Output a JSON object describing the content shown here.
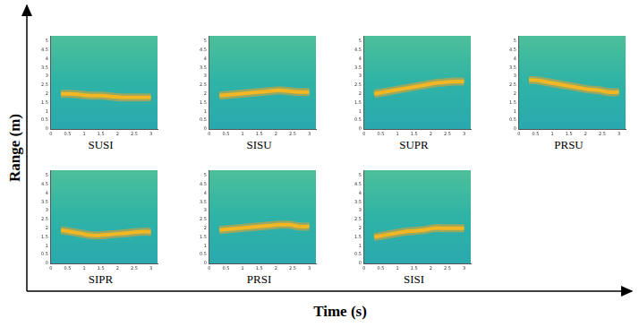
{
  "figure": {
    "x_label": "Time (s)",
    "y_label": "Range (m)"
  },
  "chart_data": [
    {
      "type": "line",
      "title": "SUSI",
      "x": [
        0.3,
        0.6,
        0.9,
        1.2,
        1.5,
        1.8,
        2.1,
        2.4,
        2.7,
        3.0
      ],
      "values": [
        2.0,
        2.0,
        1.95,
        1.9,
        1.9,
        1.85,
        1.8,
        1.8,
        1.8,
        1.8
      ],
      "color": "#f5d31f",
      "xlim": [
        0,
        3.2
      ],
      "xticks": [
        0,
        0.5,
        1,
        1.5,
        2,
        2.5,
        3
      ],
      "ylim": [
        0,
        5.3
      ],
      "yticks": [
        0,
        0.5,
        1,
        1.5,
        2,
        2.5,
        3,
        3.5,
        4,
        4.5,
        5
      ],
      "grid": false
    },
    {
      "type": "line",
      "title": "SISU",
      "x": [
        0.3,
        0.6,
        0.9,
        1.2,
        1.5,
        1.8,
        2.1,
        2.4,
        2.7,
        3.0
      ],
      "values": [
        1.9,
        1.95,
        2.0,
        2.05,
        2.1,
        2.15,
        2.2,
        2.15,
        2.1,
        2.1
      ],
      "color": "#f5d31f",
      "xlim": [
        0,
        3.2
      ],
      "xticks": [
        0,
        0.5,
        1,
        1.5,
        2,
        2.5,
        3
      ],
      "ylim": [
        0,
        5.3
      ],
      "yticks": [
        0,
        0.5,
        1,
        1.5,
        2,
        2.5,
        3,
        3.5,
        4,
        4.5,
        5
      ],
      "grid": false
    },
    {
      "type": "line",
      "title": "SUPR",
      "x": [
        0.3,
        0.6,
        0.9,
        1.2,
        1.5,
        1.8,
        2.1,
        2.4,
        2.7,
        3.0
      ],
      "values": [
        2.0,
        2.1,
        2.2,
        2.3,
        2.4,
        2.5,
        2.6,
        2.65,
        2.7,
        2.7
      ],
      "color": "#f5d31f",
      "xlim": [
        0,
        3.2
      ],
      "xticks": [
        0,
        0.5,
        1,
        1.5,
        2,
        2.5,
        3
      ],
      "ylim": [
        0,
        5.3
      ],
      "yticks": [
        0,
        0.5,
        1,
        1.5,
        2,
        2.5,
        3,
        3.5,
        4,
        4.5,
        5
      ],
      "grid": false
    },
    {
      "type": "line",
      "title": "PRSU",
      "x": [
        0.3,
        0.6,
        0.9,
        1.2,
        1.5,
        1.8,
        2.1,
        2.4,
        2.7,
        3.0
      ],
      "values": [
        2.8,
        2.75,
        2.65,
        2.55,
        2.45,
        2.35,
        2.25,
        2.2,
        2.1,
        2.1
      ],
      "color": "#f5d31f",
      "xlim": [
        0,
        3.2
      ],
      "xticks": [
        0,
        0.5,
        1,
        1.5,
        2,
        2.5,
        3
      ],
      "ylim": [
        0,
        5.3
      ],
      "yticks": [
        0,
        0.5,
        1,
        1.5,
        2,
        2.5,
        3,
        3.5,
        4,
        4.5,
        5
      ],
      "grid": false
    },
    {
      "type": "line",
      "title": "SIPR",
      "x": [
        0.3,
        0.6,
        0.9,
        1.2,
        1.5,
        1.8,
        2.1,
        2.4,
        2.7,
        3.0
      ],
      "values": [
        1.9,
        1.8,
        1.7,
        1.6,
        1.6,
        1.65,
        1.7,
        1.75,
        1.8,
        1.8
      ],
      "color": "#f5d31f",
      "xlim": [
        0,
        3.2
      ],
      "xticks": [
        0,
        0.5,
        1,
        1.5,
        2,
        2.5,
        3
      ],
      "ylim": [
        0,
        5.3
      ],
      "yticks": [
        0,
        0.5,
        1,
        1.5,
        2,
        2.5,
        3,
        3.5,
        4,
        4.5,
        5
      ],
      "grid": false
    },
    {
      "type": "line",
      "title": "PRSI",
      "x": [
        0.3,
        0.6,
        0.9,
        1.2,
        1.5,
        1.8,
        2.1,
        2.4,
        2.7,
        3.0
      ],
      "values": [
        1.9,
        1.95,
        2.0,
        2.05,
        2.1,
        2.15,
        2.2,
        2.2,
        2.1,
        2.1
      ],
      "color": "#f5d31f",
      "xlim": [
        0,
        3.2
      ],
      "xticks": [
        0,
        0.5,
        1,
        1.5,
        2,
        2.5,
        3
      ],
      "ylim": [
        0,
        5.3
      ],
      "yticks": [
        0,
        0.5,
        1,
        1.5,
        2,
        2.5,
        3,
        3.5,
        4,
        4.5,
        5
      ],
      "grid": false
    },
    {
      "type": "line",
      "title": "SISI",
      "x": [
        0.3,
        0.6,
        0.9,
        1.2,
        1.5,
        1.8,
        2.1,
        2.4,
        2.7,
        3.0
      ],
      "values": [
        1.5,
        1.6,
        1.7,
        1.8,
        1.85,
        1.9,
        2.0,
        2.0,
        2.0,
        2.0
      ],
      "color": "#f5d31f",
      "xlim": [
        0,
        3.2
      ],
      "xticks": [
        0,
        0.5,
        1,
        1.5,
        2,
        2.5,
        3
      ],
      "ylim": [
        0,
        5.3
      ],
      "yticks": [
        0,
        0.5,
        1,
        1.5,
        2,
        2.5,
        3,
        3.5,
        4,
        4.5,
        5
      ],
      "grid": false
    }
  ]
}
